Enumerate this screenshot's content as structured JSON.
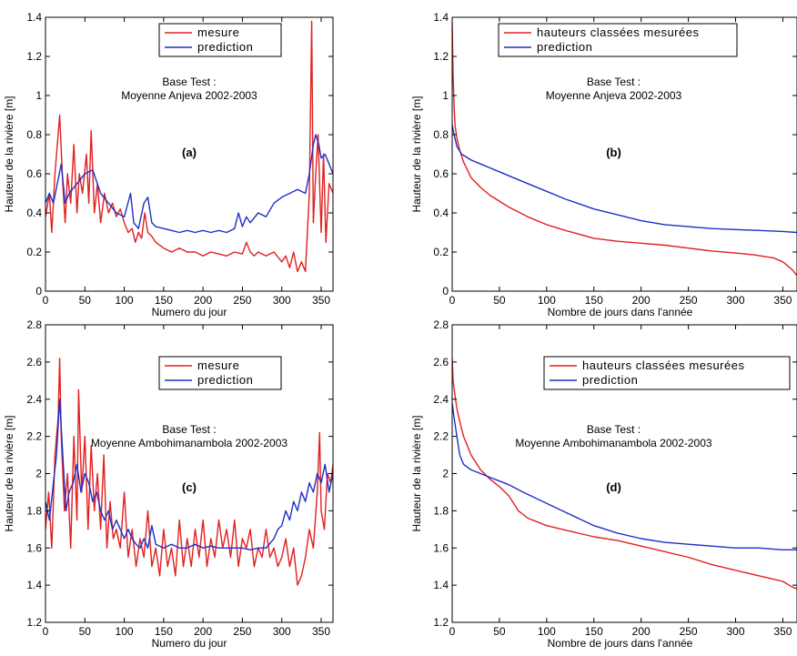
{
  "colors": {
    "mesure": "#e02020",
    "prediction": "#1f2fc8",
    "axis": "#000000"
  },
  "chart_data": [
    {
      "id": "a",
      "type": "line",
      "panel_label": "(a)",
      "annotation": [
        "Base Test :",
        "Moyenne Anjeva 2002-2003"
      ],
      "xlabel": "Numero du jour",
      "ylabel": "Hauteur de la rivière [m]",
      "xlim": [
        0,
        365
      ],
      "ylim": [
        0,
        1.4
      ],
      "xticks": [
        0,
        50,
        100,
        150,
        200,
        250,
        300,
        350
      ],
      "yticks": [
        0,
        0.2,
        0.4,
        0.6,
        0.8,
        1,
        1.2,
        1.4
      ],
      "ytick_labels": [
        "0",
        "0.2",
        "0.4",
        "0.6",
        "0.8",
        "1",
        "1.2",
        "1.4"
      ],
      "legend_position": "top-center",
      "series": [
        {
          "name": "mesure",
          "color": "#e02020",
          "x": [
            0,
            5,
            8,
            12,
            16,
            18,
            22,
            25,
            28,
            32,
            36,
            40,
            43,
            47,
            52,
            55,
            58,
            62,
            66,
            70,
            75,
            80,
            85,
            90,
            95,
            100,
            105,
            110,
            114,
            118,
            122,
            126,
            130,
            135,
            140,
            150,
            160,
            170,
            180,
            190,
            200,
            210,
            220,
            230,
            240,
            250,
            255,
            260,
            265,
            270,
            280,
            290,
            300,
            305,
            310,
            315,
            320,
            325,
            330,
            335,
            338,
            340,
            343,
            346,
            350,
            353,
            356,
            360,
            365
          ],
          "y": [
            0.38,
            0.5,
            0.3,
            0.6,
            0.8,
            0.9,
            0.55,
            0.35,
            0.6,
            0.45,
            0.75,
            0.4,
            0.6,
            0.5,
            0.7,
            0.45,
            0.82,
            0.4,
            0.55,
            0.35,
            0.5,
            0.4,
            0.45,
            0.38,
            0.42,
            0.35,
            0.3,
            0.32,
            0.25,
            0.3,
            0.27,
            0.4,
            0.3,
            0.28,
            0.25,
            0.22,
            0.2,
            0.22,
            0.2,
            0.2,
            0.18,
            0.2,
            0.19,
            0.18,
            0.2,
            0.19,
            0.25,
            0.2,
            0.18,
            0.2,
            0.18,
            0.2,
            0.15,
            0.18,
            0.12,
            0.2,
            0.1,
            0.15,
            0.1,
            0.5,
            1.38,
            0.35,
            0.6,
            0.8,
            0.3,
            0.7,
            0.25,
            0.55,
            0.5
          ]
        },
        {
          "name": "prediction",
          "color": "#1f2fc8",
          "x": [
            0,
            5,
            10,
            15,
            20,
            25,
            30,
            40,
            50,
            60,
            70,
            80,
            90,
            100,
            108,
            112,
            118,
            125,
            130,
            135,
            140,
            150,
            160,
            170,
            180,
            190,
            200,
            210,
            220,
            230,
            240,
            245,
            250,
            255,
            260,
            270,
            280,
            290,
            300,
            310,
            320,
            330,
            335,
            340,
            343,
            347,
            350,
            355,
            360,
            365
          ],
          "y": [
            0.45,
            0.5,
            0.45,
            0.55,
            0.65,
            0.45,
            0.5,
            0.55,
            0.6,
            0.62,
            0.5,
            0.45,
            0.4,
            0.38,
            0.5,
            0.35,
            0.32,
            0.45,
            0.48,
            0.35,
            0.33,
            0.32,
            0.31,
            0.3,
            0.31,
            0.3,
            0.31,
            0.3,
            0.31,
            0.3,
            0.32,
            0.4,
            0.33,
            0.38,
            0.35,
            0.4,
            0.38,
            0.45,
            0.48,
            0.5,
            0.52,
            0.5,
            0.6,
            0.75,
            0.8,
            0.75,
            0.68,
            0.7,
            0.65,
            0.6
          ]
        }
      ]
    },
    {
      "id": "b",
      "type": "line",
      "panel_label": "(b)",
      "annotation": [
        "Base Test :",
        "Moyenne Anjeva 2002-2003"
      ],
      "xlabel": "Nombre de jours dans l'année",
      "ylabel": "Hauteur de la rivière [m]",
      "xlim": [
        0,
        365
      ],
      "ylim": [
        0,
        1.4
      ],
      "xticks": [
        0,
        50,
        100,
        150,
        200,
        250,
        300,
        350
      ],
      "yticks": [
        0,
        0.2,
        0.4,
        0.6,
        0.8,
        1,
        1.2,
        1.4
      ],
      "ytick_labels": [
        "0",
        "0.2",
        "0.4",
        "0.6",
        "0.8",
        "1",
        "1.2",
        "1.4"
      ],
      "legend_position": "top-center",
      "series": [
        {
          "name": "hauteurs classées mesurées",
          "color": "#e02020",
          "x": [
            0,
            1,
            2,
            3,
            5,
            8,
            12,
            20,
            30,
            40,
            50,
            60,
            80,
            100,
            120,
            150,
            175,
            200,
            225,
            250,
            275,
            300,
            320,
            340,
            350,
            355,
            360,
            365
          ],
          "y": [
            1.38,
            1.1,
            0.95,
            0.85,
            0.78,
            0.72,
            0.66,
            0.58,
            0.53,
            0.49,
            0.46,
            0.43,
            0.38,
            0.34,
            0.31,
            0.27,
            0.255,
            0.245,
            0.235,
            0.22,
            0.205,
            0.195,
            0.185,
            0.17,
            0.15,
            0.13,
            0.11,
            0.08
          ]
        },
        {
          "name": "prediction",
          "color": "#1f2fc8",
          "x": [
            0,
            2,
            5,
            10,
            20,
            30,
            40,
            50,
            60,
            80,
            100,
            120,
            150,
            175,
            200,
            225,
            250,
            275,
            300,
            325,
            350,
            365
          ],
          "y": [
            0.85,
            0.8,
            0.74,
            0.7,
            0.67,
            0.65,
            0.63,
            0.61,
            0.59,
            0.55,
            0.51,
            0.47,
            0.42,
            0.39,
            0.36,
            0.34,
            0.33,
            0.32,
            0.315,
            0.31,
            0.305,
            0.3
          ]
        }
      ]
    },
    {
      "id": "c",
      "type": "line",
      "panel_label": "(c)",
      "annotation": [
        "Base Test :",
        "Moyenne Ambohimanambola 2002-2003"
      ],
      "xlabel": "Numero du jour",
      "ylabel": "Hauteur de la rivière [m]",
      "xlim": [
        0,
        365
      ],
      "ylim": [
        1.2,
        2.8
      ],
      "xticks": [
        0,
        50,
        100,
        150,
        200,
        250,
        300,
        350
      ],
      "yticks": [
        1.2,
        1.4,
        1.6,
        1.8,
        2,
        2.2,
        2.4,
        2.6,
        2.8
      ],
      "ytick_labels": [
        "1.2",
        "1.4",
        "1.6",
        "1.8",
        "2",
        "2.2",
        "2.4",
        "2.6",
        "2.8"
      ],
      "legend_position": "top-center",
      "series": [
        {
          "name": "mesure",
          "color": "#e02020",
          "x": [
            0,
            4,
            8,
            12,
            16,
            18,
            20,
            24,
            28,
            32,
            36,
            40,
            42,
            46,
            50,
            54,
            58,
            62,
            66,
            70,
            74,
            78,
            82,
            86,
            90,
            95,
            100,
            105,
            110,
            115,
            120,
            125,
            130,
            135,
            140,
            145,
            150,
            155,
            160,
            165,
            170,
            175,
            180,
            185,
            190,
            195,
            200,
            205,
            210,
            215,
            220,
            225,
            230,
            235,
            240,
            245,
            250,
            255,
            260,
            265,
            270,
            275,
            280,
            285,
            290,
            295,
            300,
            305,
            310,
            315,
            320,
            325,
            330,
            335,
            340,
            345,
            348,
            350,
            354,
            358,
            362,
            365
          ],
          "y": [
            1.7,
            1.9,
            1.6,
            2.1,
            2.3,
            2.62,
            2.2,
            1.8,
            2.0,
            1.6,
            2.2,
            1.75,
            2.45,
            1.9,
            2.2,
            1.7,
            2.15,
            1.8,
            2.0,
            1.7,
            2.1,
            1.6,
            1.85,
            1.65,
            1.7,
            1.6,
            1.9,
            1.55,
            1.7,
            1.5,
            1.65,
            1.55,
            1.8,
            1.5,
            1.6,
            1.45,
            1.7,
            1.5,
            1.6,
            1.45,
            1.75,
            1.5,
            1.65,
            1.5,
            1.7,
            1.55,
            1.75,
            1.5,
            1.65,
            1.55,
            1.75,
            1.6,
            1.7,
            1.55,
            1.75,
            1.5,
            1.65,
            1.6,
            1.7,
            1.5,
            1.6,
            1.55,
            1.7,
            1.55,
            1.6,
            1.5,
            1.55,
            1.65,
            1.5,
            1.6,
            1.4,
            1.45,
            1.55,
            1.7,
            1.6,
            1.9,
            2.22,
            1.8,
            1.7,
            2.0,
            1.95,
            2.05
          ]
        },
        {
          "name": "prediction",
          "color": "#1f2fc8",
          "x": [
            0,
            5,
            10,
            14,
            18,
            22,
            26,
            30,
            35,
            40,
            45,
            50,
            55,
            60,
            65,
            70,
            75,
            80,
            85,
            90,
            95,
            100,
            105,
            110,
            115,
            120,
            125,
            130,
            135,
            140,
            150,
            160,
            170,
            180,
            190,
            200,
            210,
            220,
            230,
            240,
            250,
            260,
            270,
            280,
            290,
            295,
            300,
            305,
            310,
            315,
            320,
            325,
            330,
            335,
            340,
            345,
            350,
            355,
            360,
            365
          ],
          "y": [
            1.85,
            1.75,
            1.95,
            2.1,
            2.4,
            2.1,
            1.8,
            1.9,
            1.95,
            2.05,
            1.9,
            2.0,
            1.95,
            1.85,
            1.9,
            1.8,
            1.75,
            1.8,
            1.7,
            1.75,
            1.7,
            1.65,
            1.7,
            1.65,
            1.62,
            1.6,
            1.65,
            1.6,
            1.72,
            1.62,
            1.6,
            1.62,
            1.6,
            1.6,
            1.62,
            1.6,
            1.61,
            1.6,
            1.6,
            1.6,
            1.6,
            1.59,
            1.6,
            1.6,
            1.65,
            1.7,
            1.72,
            1.8,
            1.75,
            1.85,
            1.8,
            1.9,
            1.85,
            1.95,
            1.9,
            2.0,
            1.95,
            2.05,
            1.9,
            2.0
          ]
        }
      ]
    },
    {
      "id": "d",
      "type": "line",
      "panel_label": "(d)",
      "annotation": [
        "Base Test :",
        "Moyenne Ambohimanambola 2002-2003"
      ],
      "xlabel": "Nombre de jours dans l'année",
      "ylabel": "Hauteur de la rivière [m]",
      "xlim": [
        0,
        365
      ],
      "ylim": [
        1.2,
        2.8
      ],
      "xticks": [
        0,
        50,
        100,
        150,
        200,
        250,
        300,
        350
      ],
      "yticks": [
        1.2,
        1.4,
        1.6,
        1.8,
        2,
        2.2,
        2.4,
        2.6,
        2.8
      ],
      "ytick_labels": [
        "1.2",
        "1.4",
        "1.6",
        "1.8",
        "2",
        "2.2",
        "2.4",
        "2.6",
        "2.8"
      ],
      "legend_position": "top-right",
      "series": [
        {
          "name": "hauteurs classées mesurées",
          "color": "#e02020",
          "x": [
            0,
            1,
            3,
            5,
            8,
            12,
            16,
            20,
            25,
            30,
            40,
            50,
            60,
            70,
            80,
            100,
            125,
            150,
            175,
            200,
            225,
            250,
            275,
            300,
            325,
            350,
            360,
            365
          ],
          "y": [
            2.62,
            2.5,
            2.42,
            2.35,
            2.28,
            2.2,
            2.15,
            2.1,
            2.06,
            2.02,
            1.97,
            1.93,
            1.88,
            1.8,
            1.76,
            1.72,
            1.69,
            1.66,
            1.64,
            1.61,
            1.58,
            1.55,
            1.51,
            1.48,
            1.45,
            1.42,
            1.39,
            1.38
          ]
        },
        {
          "name": "prediction",
          "color": "#1f2fc8",
          "x": [
            0,
            2,
            5,
            8,
            12,
            20,
            30,
            40,
            50,
            60,
            75,
            100,
            125,
            150,
            175,
            200,
            225,
            250,
            275,
            300,
            325,
            350,
            365
          ],
          "y": [
            2.38,
            2.3,
            2.2,
            2.1,
            2.05,
            2.02,
            2.0,
            1.98,
            1.96,
            1.94,
            1.9,
            1.84,
            1.78,
            1.72,
            1.68,
            1.65,
            1.63,
            1.62,
            1.61,
            1.6,
            1.6,
            1.59,
            1.59
          ]
        }
      ]
    }
  ]
}
